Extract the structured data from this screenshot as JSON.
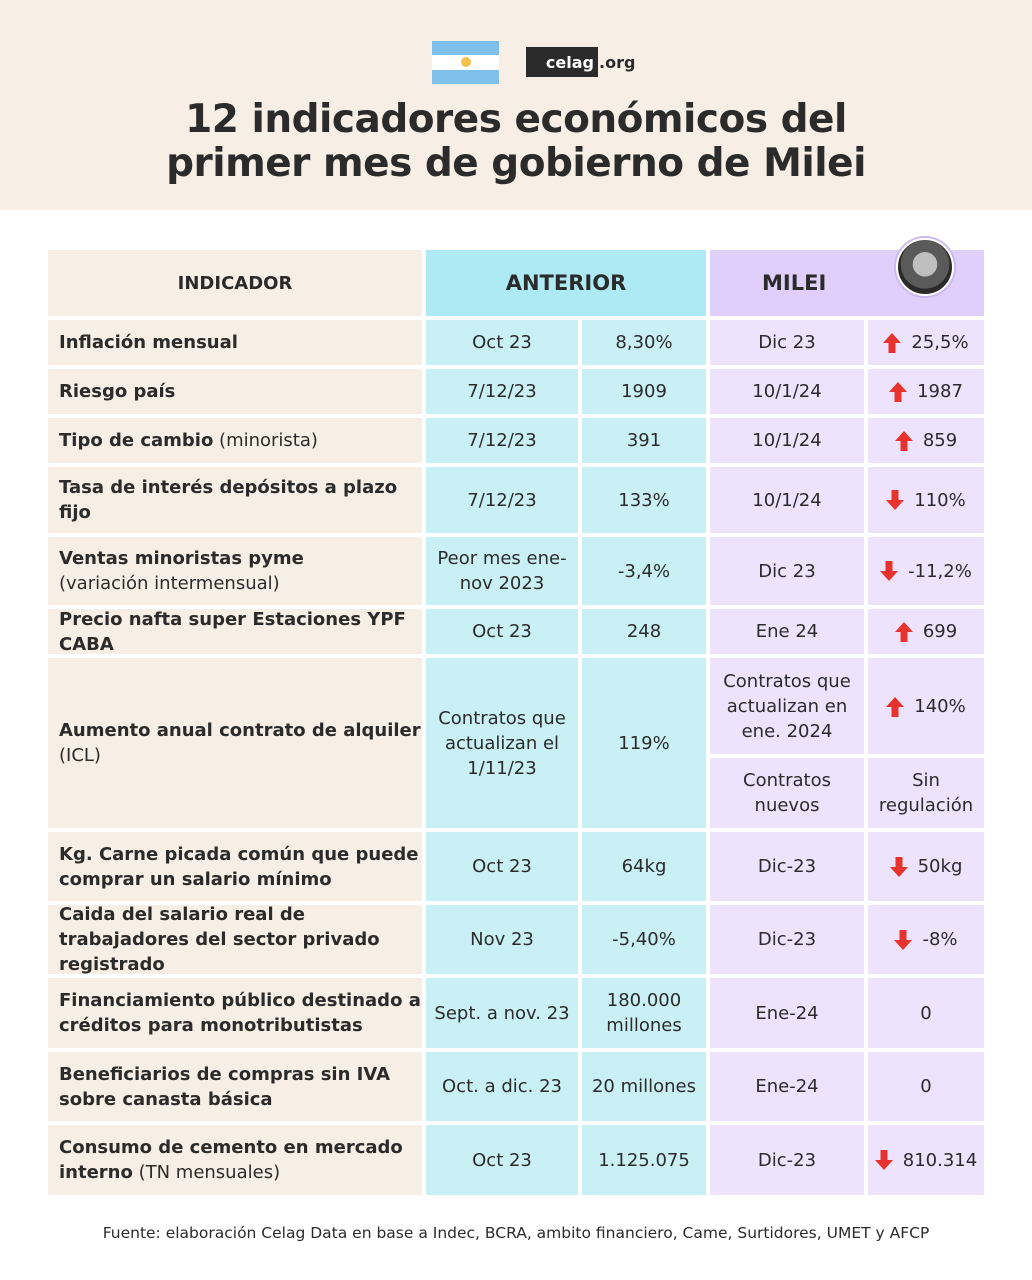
{
  "header": {
    "logo_main": "celag",
    "logo_suffix": ".org",
    "title_line1": "12 indicadores económicos del",
    "title_line2": "primer mes de gobierno de Milei"
  },
  "table": {
    "col_indicador": "INDICADOR",
    "col_anterior": "ANTERIOR",
    "col_milei": "MILEI",
    "rows": [
      {
        "ind_bold": "Inflación mensual",
        "ind_light": "",
        "ant_date": "Oct 23",
        "ant_val": "8,30%",
        "mil_date": "Dic 23",
        "mil_val": "25,5%",
        "trend": "up"
      },
      {
        "ind_bold": "Riesgo país",
        "ind_light": "",
        "ant_date": "7/12/23",
        "ant_val": "1909",
        "mil_date": "10/1/24",
        "mil_val": "1987",
        "trend": "up"
      },
      {
        "ind_bold": "Tipo de cambio",
        "ind_light": " (minorista)",
        "ant_date": "7/12/23",
        "ant_val": "391",
        "mil_date": "10/1/24",
        "mil_val": "859",
        "trend": "up"
      },
      {
        "ind_bold": "Tasa de interés depósitos a plazo fijo",
        "ind_light": "",
        "ant_date": "7/12/23",
        "ant_val": "133%",
        "mil_date": "10/1/24",
        "mil_val": "110%",
        "trend": "down"
      },
      {
        "ind_bold": "Ventas minoristas pyme",
        "ind_light": "(variación intermensual)",
        "ant_date": "Peor mes ene-nov 2023",
        "ant_val": "-3,4%",
        "mil_date": "Dic 23",
        "mil_val": "-11,2%",
        "trend": "down"
      },
      {
        "ind_bold": "Precio nafta super Estaciones YPF CABA",
        "ind_light": "",
        "ant_date": "Oct 23",
        "ant_val": "248",
        "mil_date": "Ene 24",
        "mil_val": "699",
        "trend": "up"
      },
      {
        "ind_bold": "Aumento anual contrato de alquiler",
        "ind_light": "(ICL)",
        "ant_date": "Contratos que actualizan el 1/11/23",
        "ant_val": "119%",
        "mil_date": "Contratos que actualizan en ene. 2024",
        "mil_val": "140%",
        "trend": "up",
        "mil_date2": "Contratos nuevos",
        "mil_val2": "Sin regulación"
      },
      {
        "ind_bold": "Kg. Carne picada común que puede comprar un salario mínimo",
        "ind_light": "",
        "ant_date": "Oct 23",
        "ant_val": "64kg",
        "mil_date": "Dic-23",
        "mil_val": "50kg",
        "trend": "down"
      },
      {
        "ind_bold": "Caida del salario real de trabajadores del sector privado registrado",
        "ind_light": "",
        "ant_date": "Nov 23",
        "ant_val": "-5,40%",
        "mil_date": "Dic-23",
        "mil_val": "-8%",
        "trend": "down"
      },
      {
        "ind_bold": "Financiamiento público destinado a créditos para monotributistas",
        "ind_light": "",
        "ant_date": "Sept. a nov. 23",
        "ant_val": "180.000 millones",
        "mil_date": "Ene-24",
        "mil_val": "0",
        "trend": "none"
      },
      {
        "ind_bold": "Beneficiarios de compras sin IVA sobre canasta básica",
        "ind_light": "",
        "ant_date": "Oct. a dic. 23",
        "ant_val": "20 millones",
        "mil_date": "Ene-24",
        "mil_val": "0",
        "trend": "none"
      },
      {
        "ind_bold": "Consumo de cemento en mercado interno",
        "ind_light": " (TN mensuales)",
        "ant_date": "Oct 23",
        "ant_val": "1.125.075",
        "mil_date": "Dic-23",
        "mil_val": "810.314",
        "trend": "down"
      }
    ]
  },
  "footer": {
    "source": "Fuente: elaboración Celag Data en base a Indec, BCRA, ambito financiero, Came, Surtidores, UMET y AFCP"
  },
  "colors": {
    "beige": "#f7efe6",
    "cyan": "#c9f0f5",
    "lavender": "#ede3fc",
    "arrow_red": "#e8322d"
  }
}
